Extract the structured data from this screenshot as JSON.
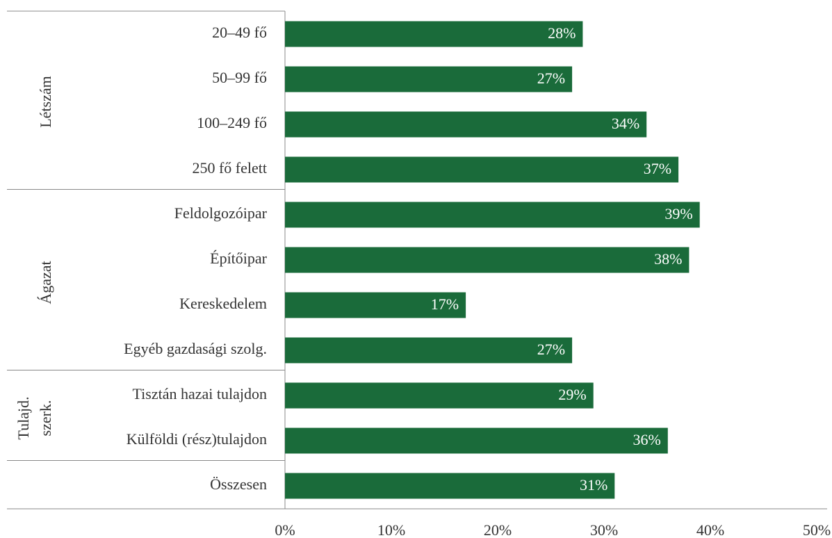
{
  "chart_data": {
    "type": "bar",
    "orientation": "horizontal",
    "color": "#1a6b3a",
    "groups": [
      {
        "name": "Létszám",
        "categories": [
          "20–49 fő",
          "50–99 fő",
          "100–249 fő",
          "250 fő felett"
        ],
        "values": [
          28,
          27,
          34,
          37
        ],
        "value_labels": [
          "28%",
          "27%",
          "34%",
          "37%"
        ]
      },
      {
        "name": "Ágazat",
        "categories": [
          "Feldolgozóipar",
          "Építőipar",
          "Kereskedelem",
          "Egyéb gazdasági szolg."
        ],
        "values": [
          39,
          38,
          17,
          27
        ],
        "value_labels": [
          "39%",
          "38%",
          "17%",
          "27%"
        ]
      },
      {
        "name": "Tulajd. szerk.",
        "categories": [
          "Tisztán hazai tulajdon",
          "Külföldi (rész)tulajdon"
        ],
        "values": [
          29,
          36
        ],
        "value_labels": [
          "29%",
          "36%"
        ]
      },
      {
        "categories": [
          "Összesen"
        ],
        "values": [
          31
        ],
        "value_labels": [
          "31%"
        ]
      }
    ],
    "xlim": [
      0,
      50
    ],
    "xticks": [
      {
        "value": 0,
        "label": "0%"
      },
      {
        "value": 10,
        "label": "10%"
      },
      {
        "value": 20,
        "label": "20%"
      },
      {
        "value": 30,
        "label": "30%"
      },
      {
        "value": 40,
        "label": "40%"
      },
      {
        "value": 50,
        "label": "50%"
      }
    ]
  }
}
